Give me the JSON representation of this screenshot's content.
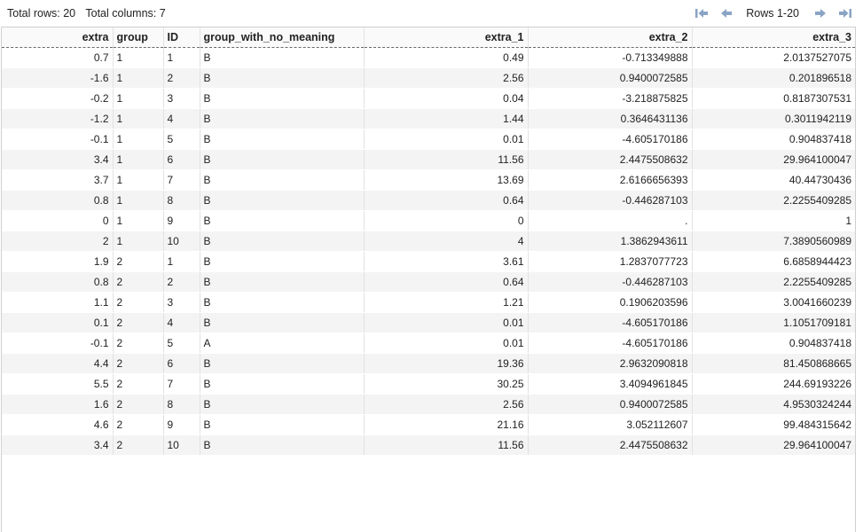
{
  "summary": {
    "rows_text": "Total rows: 20",
    "cols_text": "Total columns: 7"
  },
  "pager": {
    "label": "Rows 1-20",
    "icons": [
      "first-page-icon",
      "prev-page-icon",
      "next-page-icon",
      "last-page-icon"
    ],
    "icon_color": "#8aa4c4"
  },
  "table": {
    "columns": [
      "extra",
      "group",
      "ID",
      "group_with_no_meaning",
      "extra_1",
      "extra_2",
      "extra_3"
    ],
    "rows": [
      [
        "0.7",
        "1",
        "1",
        "B",
        "0.49",
        "-0.713349888",
        "2.0137527075"
      ],
      [
        "-1.6",
        "1",
        "2",
        "B",
        "2.56",
        "0.9400072585",
        "0.201896518"
      ],
      [
        "-0.2",
        "1",
        "3",
        "B",
        "0.04",
        "-3.218875825",
        "0.8187307531"
      ],
      [
        "-1.2",
        "1",
        "4",
        "B",
        "1.44",
        "0.3646431136",
        "0.3011942119"
      ],
      [
        "-0.1",
        "1",
        "5",
        "B",
        "0.01",
        "-4.605170186",
        "0.904837418"
      ],
      [
        "3.4",
        "1",
        "6",
        "B",
        "11.56",
        "2.4475508632",
        "29.964100047"
      ],
      [
        "3.7",
        "1",
        "7",
        "B",
        "13.69",
        "2.6166656393",
        "40.44730436"
      ],
      [
        "0.8",
        "1",
        "8",
        "B",
        "0.64",
        "-0.446287103",
        "2.2255409285"
      ],
      [
        "0",
        "1",
        "9",
        "B",
        "0",
        ".",
        "1"
      ],
      [
        "2",
        "1",
        "10",
        "B",
        "4",
        "1.3862943611",
        "7.3890560989"
      ],
      [
        "1.9",
        "2",
        "1",
        "B",
        "3.61",
        "1.2837077723",
        "6.6858944423"
      ],
      [
        "0.8",
        "2",
        "2",
        "B",
        "0.64",
        "-0.446287103",
        "2.2255409285"
      ],
      [
        "1.1",
        "2",
        "3",
        "B",
        "1.21",
        "0.1906203596",
        "3.0041660239"
      ],
      [
        "0.1",
        "2",
        "4",
        "B",
        "0.01",
        "-4.605170186",
        "1.1051709181"
      ],
      [
        "-0.1",
        "2",
        "5",
        "A",
        "0.01",
        "-4.605170186",
        "0.904837418"
      ],
      [
        "4.4",
        "2",
        "6",
        "B",
        "19.36",
        "2.9632090818",
        "81.450868665"
      ],
      [
        "5.5",
        "2",
        "7",
        "B",
        "30.25",
        "3.4094961845",
        "244.69193226"
      ],
      [
        "1.6",
        "2",
        "8",
        "B",
        "2.56",
        "0.9400072585",
        "4.9530324244"
      ],
      [
        "4.6",
        "2",
        "9",
        "B",
        "21.16",
        "3.052112607",
        "99.484315642"
      ],
      [
        "3.4",
        "2",
        "10",
        "B",
        "11.56",
        "2.4475508632",
        "29.964100047"
      ]
    ]
  }
}
